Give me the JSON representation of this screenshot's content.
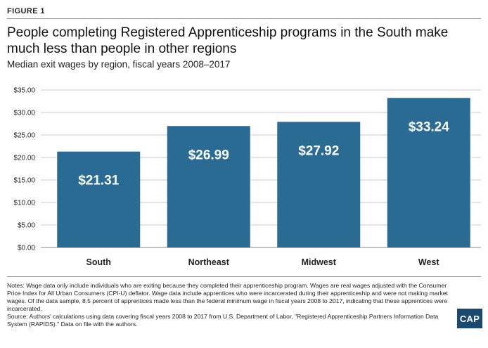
{
  "figure_label": "FIGURE 1",
  "title": "People completing Registered Apprenticeship programs in the South make much less than people in other regions",
  "subtitle": "Median exit wages by region, fiscal years 2008–2017",
  "notes": "Notes: Wage data only include individuals who are exiting because they completed their apprenticeship program. Wages are real wages adjusted with the Consumer Price Index for All Urban Consumers (CPI-U) deflator. Wage data include apprentices who were incarcerated during their apprenticeship and were not making market wages. Of the data sample, 8.5 percent of apprentices made less than the federal minimum wage in fiscal years 2008 to 2017, indicating that these apprentices were incarcerated.",
  "source": "Source: Authors' calculations using data covering fiscal years 2008 to 2017 from U.S. Department of Labor, \"Registered Apprenticeship Partners Information Data System (RAPIDS).\" Data on file with the authors.",
  "logo_text": "CAP",
  "colors": {
    "bar": "#2a6b94",
    "grid": "#c8c8c8"
  },
  "chart_data": {
    "type": "bar",
    "categories": [
      "South",
      "Northeast",
      "Midwest",
      "West"
    ],
    "values": [
      21.31,
      26.99,
      27.92,
      33.24
    ],
    "value_labels": [
      "$21.31",
      "$26.99",
      "$27.92",
      "$33.24"
    ],
    "ylim": [
      0,
      35
    ],
    "yticks": [
      0,
      5,
      10,
      15,
      20,
      25,
      30,
      35
    ],
    "ytick_labels": [
      "$0.00",
      "$5.00",
      "$10.00",
      "$15.00",
      "$20.00",
      "$25.00",
      "$30.00",
      "$35.00"
    ],
    "grid": true,
    "xlabel": "",
    "ylabel": ""
  }
}
